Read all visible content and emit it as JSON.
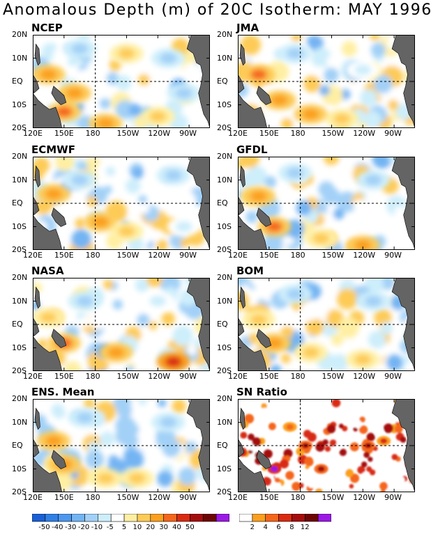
{
  "title": "Anomalous Depth (m) of 20C Isotherm: MAY 1996",
  "chart_data": [
    {
      "type": "heatmap",
      "title": "NCEP",
      "xticks": [
        "120E",
        "150E",
        "180",
        "150W",
        "120W",
        "90W"
      ],
      "yticks": [
        "20N",
        "10N",
        "EQ",
        "10S",
        "20S"
      ],
      "grid": "dashed at 180 and EQ",
      "features": [
        {
          "lon": 150,
          "lat": -13,
          "value": 30
        },
        {
          "lon": 135,
          "lat": 3,
          "value": 25
        },
        {
          "lon": 160,
          "lat": -5,
          "value": 20
        },
        {
          "lon": -170,
          "lat": -18,
          "value": 20
        },
        {
          "lon": -150,
          "lat": 12,
          "value": 15
        },
        {
          "lon": -120,
          "lat": -15,
          "value": 10
        },
        {
          "lon": -110,
          "lat": 10,
          "value": -20
        },
        {
          "lon": 165,
          "lat": 14,
          "value": -15
        },
        {
          "lon": -95,
          "lat": -5,
          "value": -15
        }
      ]
    },
    {
      "type": "heatmap",
      "title": "JMA",
      "xticks": [
        "120E",
        "150E",
        "180",
        "150W",
        "120W",
        "90W"
      ],
      "yticks": [
        "20N",
        "10N",
        "EQ",
        "10S",
        "20S"
      ],
      "grid": "dashed at 180 and EQ",
      "features": [
        {
          "lon": 140,
          "lat": 3,
          "value": 30
        },
        {
          "lon": 160,
          "lat": -8,
          "value": 25
        },
        {
          "lon": -170,
          "lat": -14,
          "value": 20
        },
        {
          "lon": -140,
          "lat": -16,
          "value": 10
        },
        {
          "lon": 175,
          "lat": 12,
          "value": -15
        },
        {
          "lon": -120,
          "lat": 5,
          "value": -10
        }
      ]
    },
    {
      "type": "heatmap",
      "title": "ECMWF",
      "xticks": [
        "120E",
        "150E",
        "180",
        "150W",
        "120W",
        "90W"
      ],
      "yticks": [
        "20N",
        "10N",
        "EQ",
        "10S",
        "20S"
      ],
      "grid": "dashed at 180 and EQ",
      "features": [
        {
          "lon": -175,
          "lat": -8,
          "value": 20
        },
        {
          "lon": -150,
          "lat": -12,
          "value": 15
        },
        {
          "lon": 140,
          "lat": 4,
          "value": 20
        },
        {
          "lon": 165,
          "lat": 10,
          "value": -15
        },
        {
          "lon": -105,
          "lat": 12,
          "value": -20
        },
        {
          "lon": -95,
          "lat": -10,
          "value": -10
        }
      ]
    },
    {
      "type": "heatmap",
      "title": "GFDL",
      "xticks": [
        "120E",
        "150E",
        "180",
        "150W",
        "120W",
        "90W"
      ],
      "yticks": [
        "20N",
        "10N",
        "EQ",
        "10S",
        "20S"
      ],
      "grid": "dashed at 180 and EQ",
      "features": [
        {
          "lon": 155,
          "lat": -10,
          "value": 30
        },
        {
          "lon": 140,
          "lat": 3,
          "value": 20
        },
        {
          "lon": -160,
          "lat": -15,
          "value": 15
        },
        {
          "lon": -120,
          "lat": -18,
          "value": 20
        },
        {
          "lon": 175,
          "lat": 13,
          "value": -15
        },
        {
          "lon": -110,
          "lat": 10,
          "value": -15
        }
      ]
    },
    {
      "type": "heatmap",
      "title": "NASA",
      "xticks": [
        "120E",
        "150E",
        "180",
        "150W",
        "120W",
        "90W"
      ],
      "yticks": [
        "20N",
        "10N",
        "EQ",
        "10S",
        "20S"
      ],
      "grid": "dashed at 180 and EQ",
      "features": [
        {
          "lon": 150,
          "lat": -8,
          "value": 30
        },
        {
          "lon": -105,
          "lat": -16,
          "value": 40
        },
        {
          "lon": -160,
          "lat": -12,
          "value": 20
        },
        {
          "lon": 135,
          "lat": 3,
          "value": 15
        },
        {
          "lon": 170,
          "lat": 10,
          "value": -15
        },
        {
          "lon": -120,
          "lat": 10,
          "value": -10
        }
      ]
    },
    {
      "type": "heatmap",
      "title": "BOM",
      "xticks": [
        "120E",
        "150E",
        "180",
        "150W",
        "120W",
        "90W"
      ],
      "yticks": [
        "20N",
        "10N",
        "EQ",
        "10S",
        "20S"
      ],
      "grid": "dashed at 180 and EQ",
      "features": [
        {
          "lon": 155,
          "lat": -8,
          "value": 25
        },
        {
          "lon": -170,
          "lat": -12,
          "value": 15
        },
        {
          "lon": 140,
          "lat": 2,
          "value": 15
        },
        {
          "lon": 175,
          "lat": 13,
          "value": -15
        },
        {
          "lon": -110,
          "lat": 10,
          "value": -15
        },
        {
          "lon": -120,
          "lat": -15,
          "value": 10
        }
      ]
    },
    {
      "type": "heatmap",
      "title": "ENS. Mean",
      "xticks": [
        "120E",
        "150E",
        "180",
        "150W",
        "120W",
        "90W"
      ],
      "yticks": [
        "20N",
        "10N",
        "EQ",
        "10S",
        "20S"
      ],
      "grid": "dashed at 180 and EQ",
      "features": [
        {
          "lon": 150,
          "lat": -8,
          "value": 25
        },
        {
          "lon": 140,
          "lat": 2,
          "value": 20
        },
        {
          "lon": -170,
          "lat": -14,
          "value": 15
        },
        {
          "lon": -140,
          "lat": -14,
          "value": 10
        },
        {
          "lon": 170,
          "lat": 12,
          "value": -15
        },
        {
          "lon": -110,
          "lat": 10,
          "value": -15
        }
      ]
    },
    {
      "type": "heatmap",
      "title": "SN Ratio",
      "xticks": [
        "120E",
        "150E",
        "180",
        "150W",
        "120W",
        "90W"
      ],
      "yticks": [
        "20N",
        "10N",
        "EQ",
        "10S",
        "20S"
      ],
      "grid": "dashed at 180 and EQ",
      "features": [
        {
          "lon": 155,
          "lat": -10,
          "value": 12
        },
        {
          "lon": -175,
          "lat": 0,
          "value": 10
        },
        {
          "lon": -160,
          "lat": -10,
          "value": 8
        },
        {
          "lon": -115,
          "lat": 0,
          "value": 8
        },
        {
          "lon": -100,
          "lat": 2,
          "value": 6
        },
        {
          "lon": 170,
          "lat": 8,
          "value": 4
        }
      ]
    }
  ],
  "colorbars": [
    {
      "colors": [
        "#1a5fd6",
        "#2f7fe6",
        "#4d97ee",
        "#73b4f3",
        "#a2d0f7",
        "#cdeefb",
        "#ffffff",
        "#ffefa3",
        "#fdcb57",
        "#fb9f1e",
        "#f5661a",
        "#d92b12",
        "#a50d0d",
        "#6e0505",
        "#9b18e6"
      ],
      "labels": [
        "-50",
        "-40",
        "-30",
        "-20",
        "-10",
        "-5",
        "5",
        "10",
        "20",
        "30",
        "40",
        "50"
      ]
    },
    {
      "colors": [
        "#ffffff",
        "#fb9f1e",
        "#f5661a",
        "#d92b12",
        "#a50d0d",
        "#6e0505",
        "#9b18e6"
      ],
      "labels": [
        "2",
        "4",
        "6",
        "8",
        "12"
      ]
    }
  ],
  "land_color": "#646464"
}
